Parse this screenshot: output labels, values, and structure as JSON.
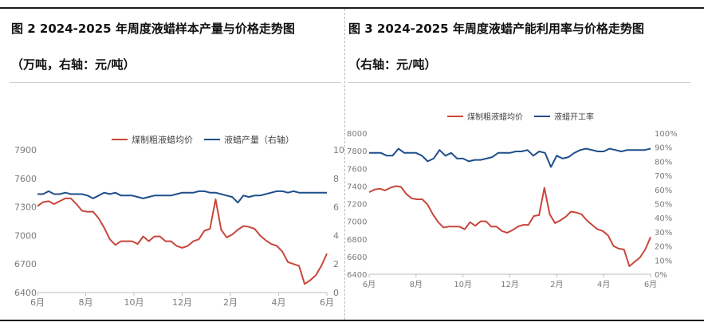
{
  "left_panel": {
    "title": "图 2  2024-2025 年周度液蜡样本产量与价格走势图",
    "subtitle": "（万吨，右轴：元/吨）"
  },
  "right_panel": {
    "title": "图 3   2024-2025 年周度液蜡产能利用率与价格走势图",
    "subtitle": "（右轴：元/吨）"
  },
  "colors": {
    "price": "#c8463b",
    "other": "#1f4e8c",
    "axis_text": "#7a7a7a"
  },
  "chart_data": [
    {
      "type": "line",
      "x_tick_labels": [
        "6月",
        "8月",
        "10月",
        "12月",
        "2月",
        "4月",
        "6月"
      ],
      "y_left": {
        "ticks": [
          "6400",
          "6700",
          "7000",
          "7300",
          "7600",
          "7900"
        ],
        "lim": [
          6400,
          7900
        ]
      },
      "y_right": {
        "ticks": [
          "0",
          "2",
          "4",
          "6",
          "8",
          "10"
        ],
        "lim": [
          0,
          10
        ]
      },
      "legend_position": "top",
      "series": [
        {
          "name": "煤制粗液蜡均价",
          "axis": "left",
          "values": [
            7310,
            7350,
            7360,
            7330,
            7360,
            7390,
            7390,
            7330,
            7260,
            7250,
            7250,
            7180,
            7080,
            6960,
            6900,
            6940,
            6940,
            6940,
            6910,
            6990,
            6940,
            6990,
            6990,
            6940,
            6940,
            6890,
            6870,
            6890,
            6940,
            6960,
            7050,
            7070,
            7380,
            7060,
            6980,
            7010,
            7060,
            7100,
            7090,
            7070,
            7000,
            6950,
            6910,
            6890,
            6830,
            6720,
            6700,
            6680,
            6490,
            6530,
            6580,
            6680,
            6810
          ]
        },
        {
          "name": "液蜡产量（右轴）",
          "axis": "right",
          "values": [
            6.9,
            6.9,
            7.1,
            6.9,
            6.9,
            7.0,
            6.9,
            6.9,
            6.9,
            6.8,
            6.6,
            6.8,
            7.0,
            6.9,
            7.0,
            6.8,
            6.8,
            6.8,
            6.7,
            6.6,
            6.7,
            6.8,
            6.8,
            6.8,
            6.8,
            6.9,
            7.0,
            7.0,
            7.0,
            7.1,
            7.1,
            7.0,
            7.0,
            6.9,
            6.8,
            6.7,
            6.3,
            6.8,
            6.7,
            6.8,
            6.8,
            6.9,
            7.0,
            7.1,
            7.1,
            7.0,
            7.1,
            7.0,
            7.0,
            7.0,
            7.0,
            7.0,
            7.0
          ]
        }
      ]
    },
    {
      "type": "line",
      "x_tick_labels": [
        "6月",
        "8月",
        "10月",
        "12月",
        "2月",
        "4月",
        "6月"
      ],
      "y_left": {
        "ticks": [
          "6400",
          "6600",
          "6800",
          "7000",
          "7200",
          "7400",
          "7600",
          "7800",
          "8000"
        ],
        "lim": [
          6400,
          8000
        ]
      },
      "y_right": {
        "ticks": [
          "0%",
          "10%",
          "20%",
          "30%",
          "40%",
          "50%",
          "60%",
          "70%",
          "80%",
          "90%",
          "100%"
        ],
        "lim": [
          0,
          100
        ]
      },
      "legend_position": "top",
      "series": [
        {
          "name": "煤制粗液蜡均价",
          "axis": "left",
          "values": [
            7330,
            7360,
            7370,
            7350,
            7380,
            7400,
            7390,
            7310,
            7260,
            7250,
            7250,
            7190,
            7080,
            6990,
            6930,
            6940,
            6940,
            6940,
            6910,
            6990,
            6950,
            7000,
            7000,
            6940,
            6940,
            6890,
            6870,
            6900,
            6940,
            6960,
            6960,
            7060,
            7070,
            7380,
            7080,
            6980,
            7010,
            7050,
            7110,
            7100,
            7080,
            7010,
            6960,
            6910,
            6890,
            6840,
            6720,
            6690,
            6680,
            6490,
            6540,
            6590,
            6680,
            6820
          ]
        },
        {
          "name": "液蜡开工率",
          "axis": "right",
          "values": [
            86,
            86,
            86,
            84,
            84,
            89,
            86,
            86,
            86,
            84,
            80,
            82,
            88,
            84,
            86,
            82,
            82,
            80,
            81,
            81,
            82,
            83,
            86,
            86,
            86,
            87,
            87,
            88,
            84,
            87,
            86,
            76,
            84,
            82,
            83,
            86,
            88,
            89,
            88,
            87,
            87,
            89,
            88,
            87,
            88,
            88,
            88,
            88,
            89
          ]
        }
      ]
    }
  ]
}
